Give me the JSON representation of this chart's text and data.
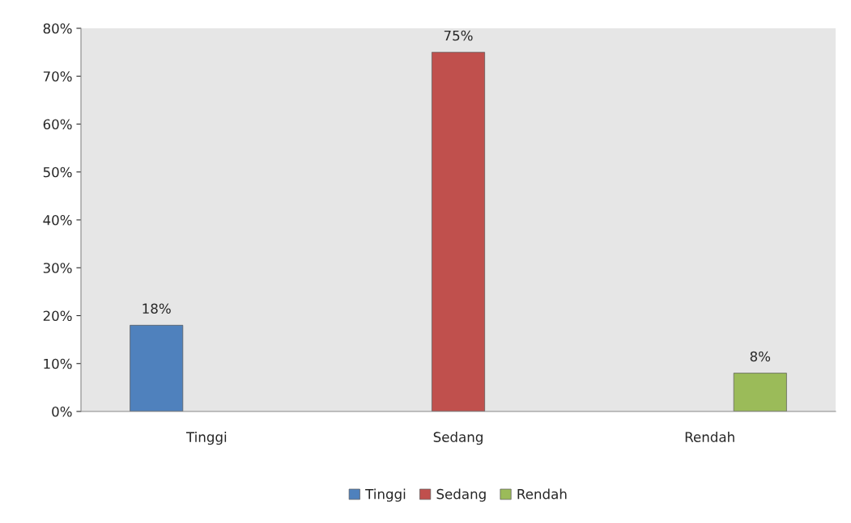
{
  "chart_data": {
    "type": "bar",
    "categories": [
      "Tinggi",
      "Sedang",
      "Rendah"
    ],
    "series": [
      {
        "name": "Tinggi",
        "color": "#4f81bd",
        "values": [
          18,
          null,
          null
        ],
        "value_labels": [
          "18%",
          null,
          null
        ]
      },
      {
        "name": "Sedang",
        "color": "#c0504d",
        "values": [
          null,
          75,
          null
        ],
        "value_labels": [
          null,
          "75%",
          null
        ]
      },
      {
        "name": "Rendah",
        "color": "#9bbb59",
        "values": [
          null,
          null,
          8
        ],
        "value_labels": [
          null,
          null,
          "8%"
        ]
      }
    ],
    "ylim": [
      0,
      80
    ],
    "yticks": [
      {
        "value": 0,
        "label": "0%"
      },
      {
        "value": 10,
        "label": "10%"
      },
      {
        "value": 20,
        "label": "20%"
      },
      {
        "value": 30,
        "label": "30%"
      },
      {
        "value": 40,
        "label": "40%"
      },
      {
        "value": 50,
        "label": "50%"
      },
      {
        "value": 60,
        "label": "60%"
      },
      {
        "value": 70,
        "label": "70%"
      },
      {
        "value": 80,
        "label": "80%"
      }
    ],
    "grid": false,
    "legend": "bottom"
  }
}
